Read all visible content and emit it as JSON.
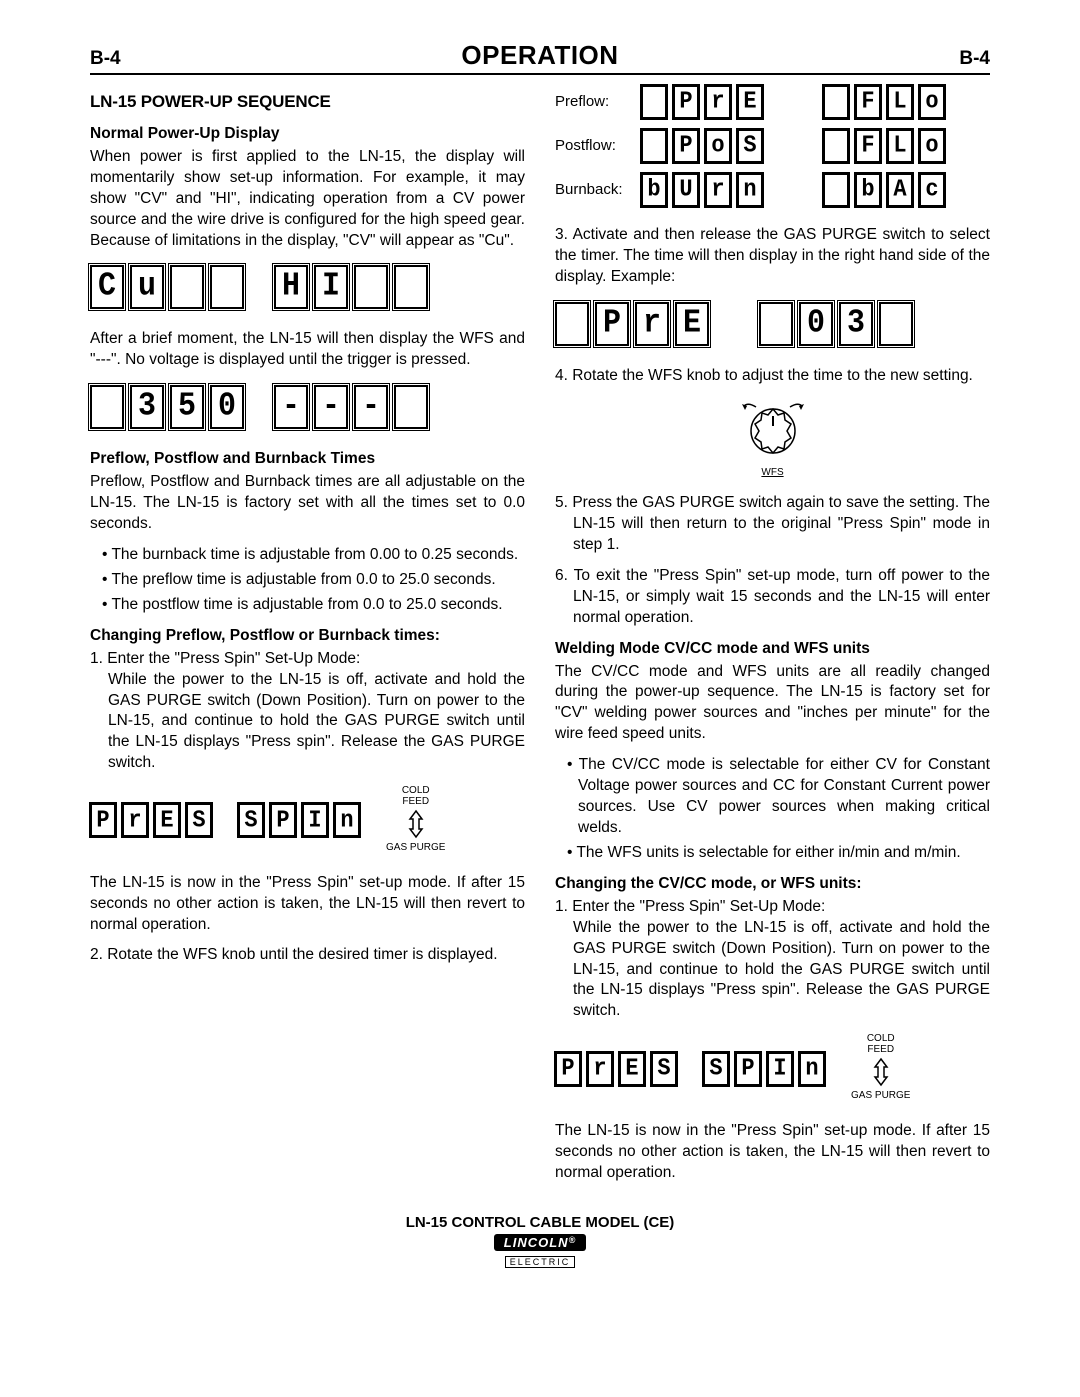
{
  "page_number": "B-4",
  "page_title": "OPERATION",
  "left": {
    "h2": "LN-15 POWER-UP SEQUENCE",
    "normal_heading": "Normal Power-Up Display",
    "normal_body": "When power is first applied to the LN-15, the display will momentarily show set-up information. For example, it may show \"CV\" and \"HI\", indicating operation from a CV power source and the wire drive is configured for the high speed gear. Because of limitations in the display, \"CV\" will appear as \"Cu\".",
    "seg1_left": [
      "C",
      "u",
      "",
      ""
    ],
    "seg1_right": [
      "H",
      "I",
      "",
      ""
    ],
    "after_seg1": "After a brief moment, the LN-15 will then display the WFS and \"---\". No voltage is displayed until the trigger is pressed.",
    "seg2_left": [
      "",
      "3",
      "5",
      "0"
    ],
    "seg2_right": [
      "-",
      "-",
      "-",
      ""
    ],
    "ppb_heading": "Preflow, Postflow and Burnback Times",
    "ppb_body": "Preflow, Postflow and Burnback times are all adjustable on the LN-15. The LN-15 is factory set with all the times set to 0.0 seconds.",
    "ppb_bullets": [
      "The burnback time is adjustable from 0.00 to 0.25 seconds.",
      "The preflow time is adjustable from 0.0 to 25.0 seconds.",
      "The postflow time is adjustable from 0.0 to 25.0 seconds."
    ],
    "change_heading": "Changing Preflow, Postflow or Burnback times:",
    "step1_label": "1. Enter the \"Press Spin\" Set-Up Mode:",
    "step1_body": "While the power to the LN-15 is off, activate and hold the GAS PURGE switch (Down Position). Turn on power to the LN-15, and continue to hold the GAS PURGE switch until the LN-15 displays \"Press spin\". Release the GAS PURGE switch.",
    "pspin_left": [
      "P",
      "r",
      "E",
      "S"
    ],
    "pspin_right": [
      "S",
      "P",
      "I",
      "n"
    ],
    "switch_top": "COLD\nFEED",
    "switch_bot": "GAS PURGE",
    "after_pspin": "The LN-15 is now in the \"Press Spin\" set-up mode. If after 15 seconds no other action is taken, the LN-15 will then revert to normal operation.",
    "step2": "2. Rotate the WFS knob until the desired timer is displayed."
  },
  "right": {
    "timer_rows": [
      {
        "label": "Preflow:",
        "a": [
          "",
          "P",
          "r",
          "E"
        ],
        "b": [
          "",
          "F",
          "L",
          "o"
        ]
      },
      {
        "label": "Postflow:",
        "a": [
          "",
          "P",
          "o",
          "S"
        ],
        "b": [
          "",
          "F",
          "L",
          "o"
        ]
      },
      {
        "label": "Burnback:",
        "a": [
          "b",
          "U",
          "r",
          "n"
        ],
        "b": [
          "",
          "b",
          "A",
          "c"
        ]
      }
    ],
    "step3": "3. Activate and then release the GAS PURGE switch to select the timer. The time will then display in the right hand side of the display.  Example:",
    "seg3_left": [
      "",
      "P",
      "r",
      "E"
    ],
    "seg3_right": [
      "",
      "0",
      "3",
      ""
    ],
    "step4": "4. Rotate the WFS knob to adjust the time to the new setting.",
    "knob_label": "WFS",
    "step5": "5. Press the GAS PURGE switch again to save the setting. The LN-15 will then return to the original \"Press Spin\" mode in step 1.",
    "step6": "6. To exit the \"Press Spin\" set-up mode, turn off power to the LN-15, or simply wait 15 seconds and the LN-15 will enter normal operation.",
    "weld_heading": "Welding Mode CV/CC mode and WFS units",
    "weld_body": "The CV/CC mode and WFS units are all readily changed during the power-up sequence. The LN-15 is factory set for \"CV\" welding power sources and \"inches per minute\" for the wire feed speed units.",
    "weld_bullets": [
      "The CV/CC mode is selectable for either CV for Constant Voltage power sources and CC for Constant Current power sources. Use CV power sources when making critical welds.",
      "The WFS units is selectable for either in/min and m/min."
    ],
    "change_heading": "Changing the CV/CC mode, or WFS units:",
    "step1_label": "1. Enter the \"Press Spin\" Set-Up Mode:",
    "step1_body": "While the power to the LN-15 is off, activate and hold the GAS PURGE switch (Down Position). Turn on power to the LN-15, and continue to hold the GAS PURGE switch until the LN-15 displays \"Press spin\".   Release the GAS PURGE switch.",
    "pspin_left": [
      "P",
      "r",
      "E",
      "S"
    ],
    "pspin_right": [
      "S",
      "P",
      "I",
      "n"
    ],
    "after_pspin": "The LN-15 is now in the \"Press Spin\" set-up mode. If after 15 seconds no other action is taken, the LN-15 will then revert to normal operation."
  },
  "footer": {
    "model": "LN-15 CONTROL CABLE MODEL (CE)",
    "brand": "LINCOLN",
    "brand_sub": "ELECTRIC"
  }
}
